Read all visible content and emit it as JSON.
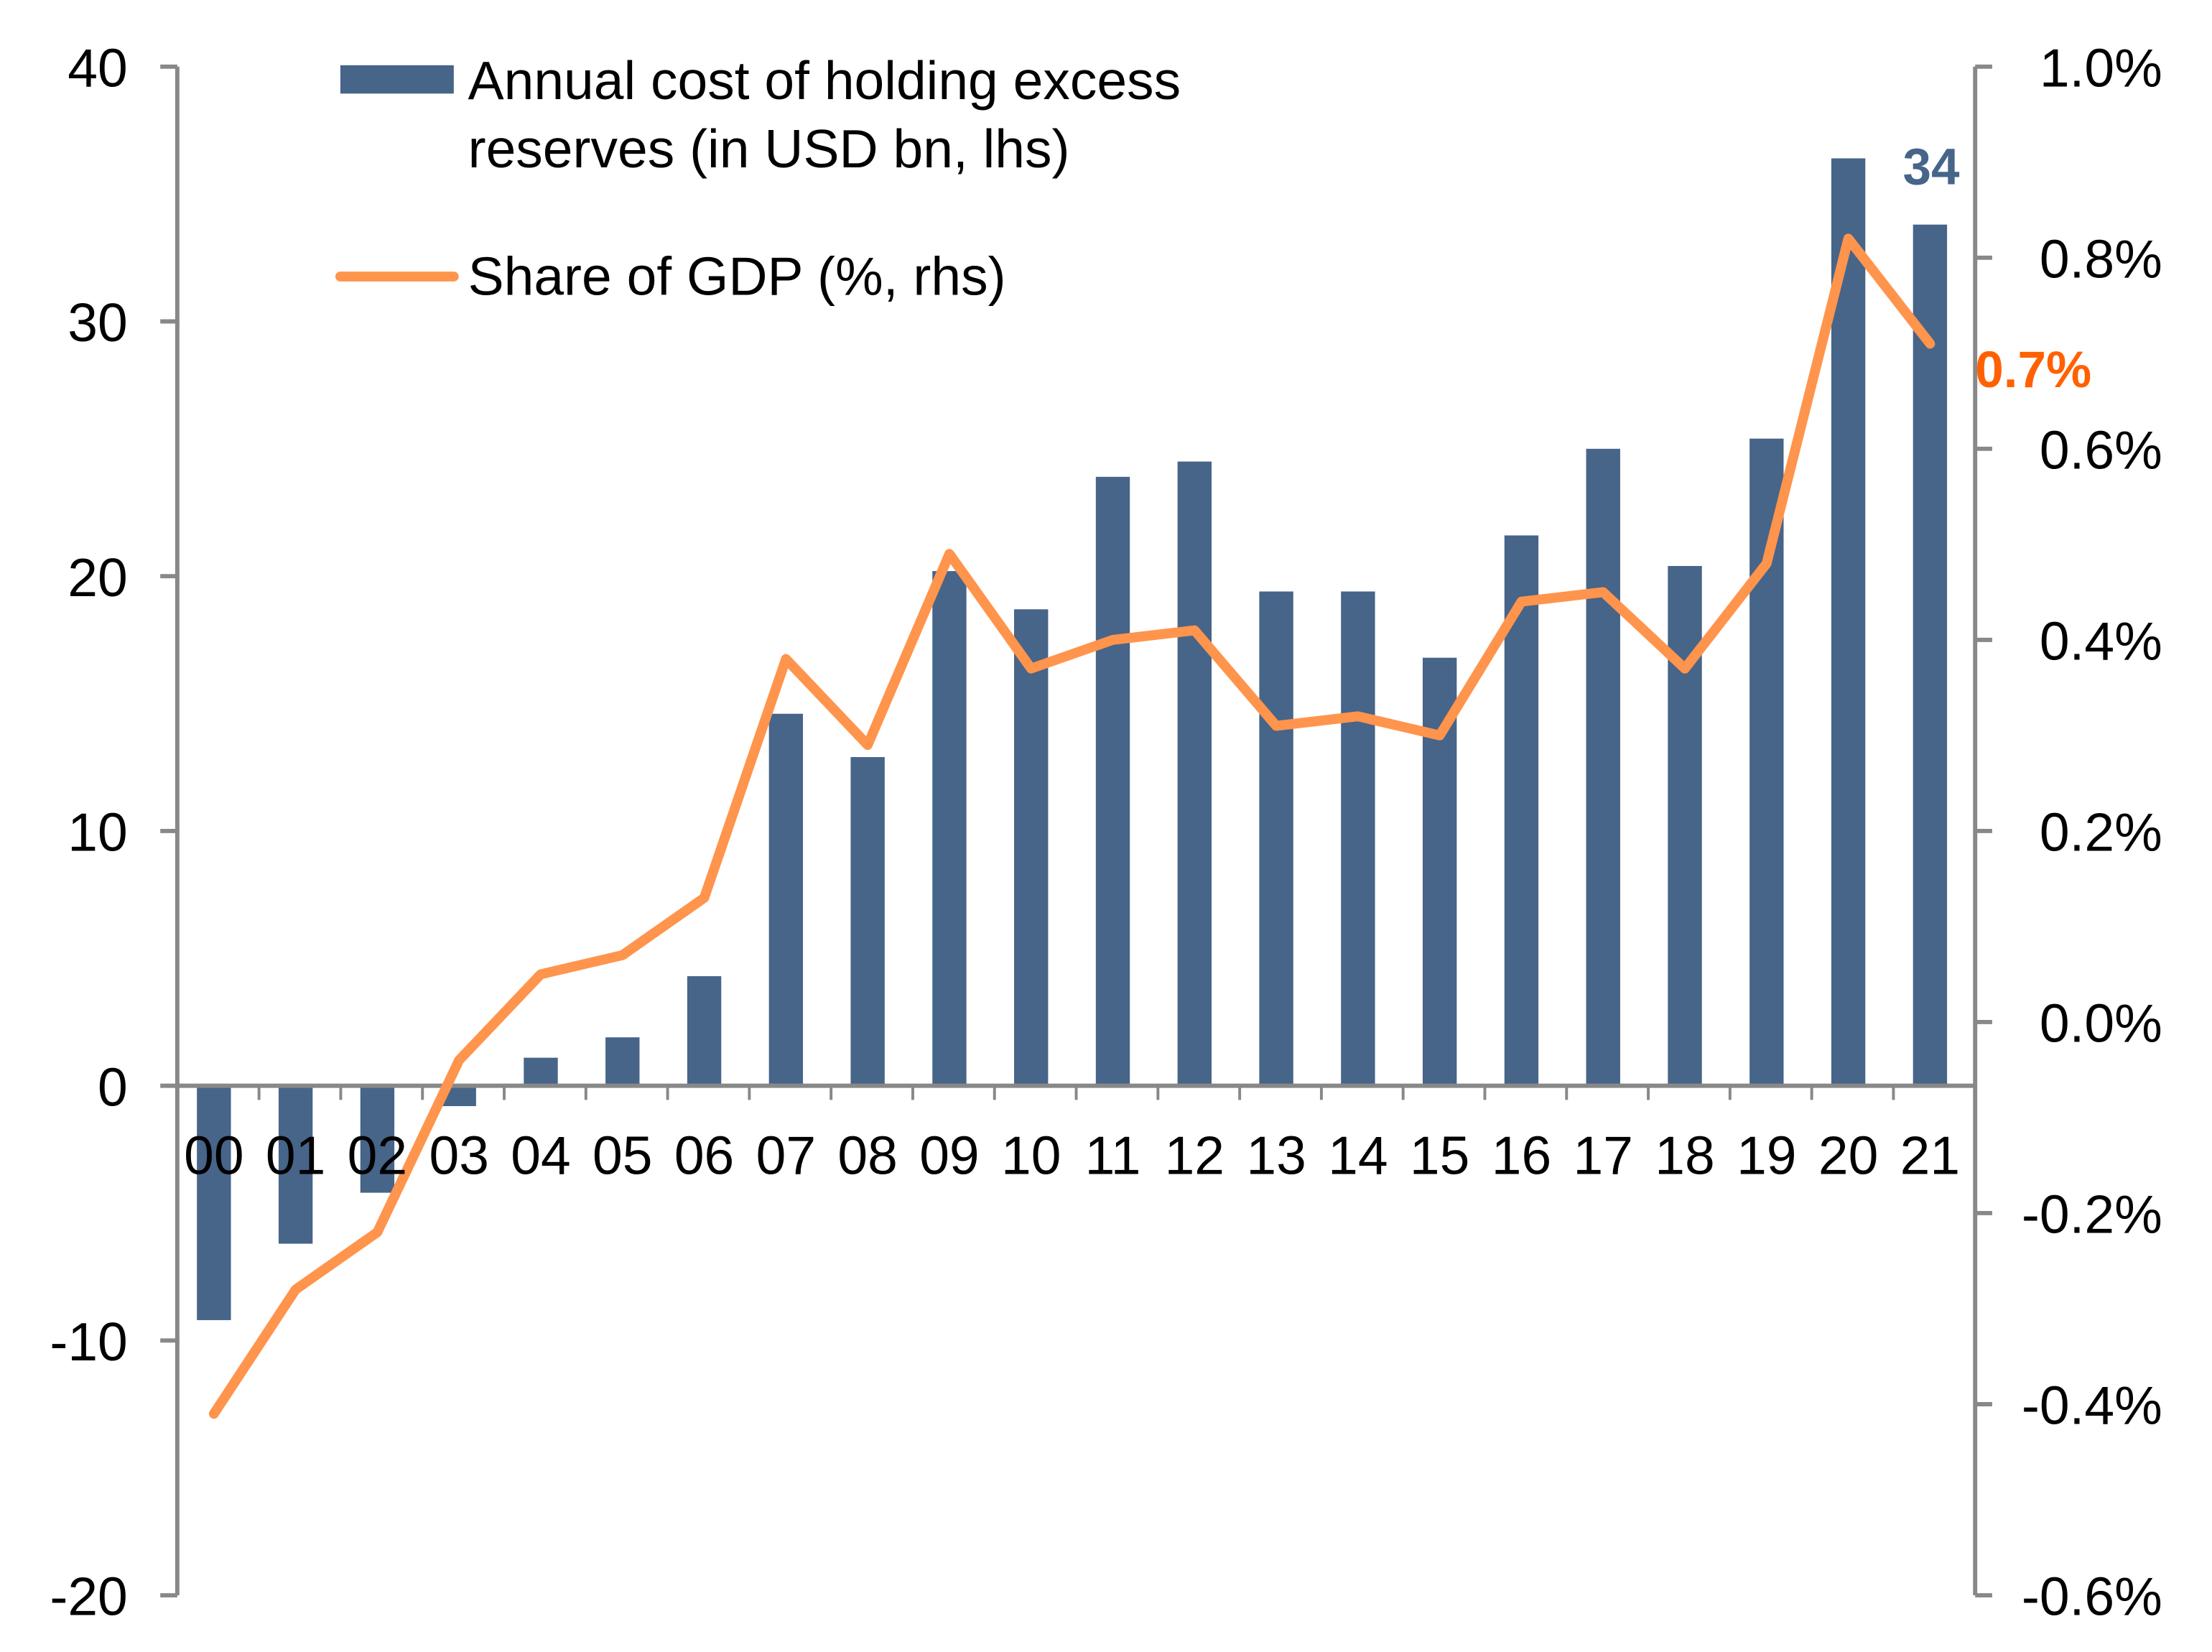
{
  "chart_data": {
    "type": "bar+line",
    "categories": [
      "00",
      "01",
      "02",
      "03",
      "04",
      "05",
      "06",
      "07",
      "08",
      "09",
      "10",
      "11",
      "12",
      "13",
      "14",
      "15",
      "16",
      "17",
      "18",
      "19",
      "20",
      "21"
    ],
    "series": [
      {
        "name": "Annual cost of holding excess reserves (in USD bn, lhs)",
        "type": "bar",
        "axis": "left",
        "color": "#476489",
        "values": [
          -9.2,
          -6.2,
          -4.2,
          -0.8,
          1.1,
          1.9,
          4.3,
          14.6,
          12.9,
          20.2,
          18.7,
          23.9,
          24.5,
          19.4,
          19.4,
          16.8,
          21.6,
          25.0,
          20.4,
          25.4,
          36.4,
          33.8
        ]
      },
      {
        "name": "Share of GDP (%, rhs)",
        "type": "line",
        "axis": "right",
        "color": "#FF944D",
        "values": [
          -0.41,
          -0.28,
          -0.22,
          -0.04,
          0.05,
          0.07,
          0.13,
          0.38,
          0.29,
          0.49,
          0.37,
          0.4,
          0.41,
          0.31,
          0.32,
          0.3,
          0.44,
          0.45,
          0.37,
          0.48,
          0.82,
          0.71
        ]
      }
    ],
    "left_axis": {
      "ylim": [
        -20,
        40
      ],
      "ticks": [
        "-20",
        "-10",
        "0",
        "10",
        "20",
        "30",
        "40"
      ]
    },
    "right_axis": {
      "ylim": [
        -0.6,
        1.0
      ],
      "ticks": [
        "-0.6%",
        "-0.4%",
        "-0.2%",
        "0.0%",
        "0.2%",
        "0.4%",
        "0.6%",
        "0.8%",
        "1.0%"
      ]
    },
    "annotations": {
      "bar_last": "34",
      "line_last": "0.7%",
      "bar_label_color": "#476489",
      "line_label_color": "#FF6100"
    },
    "legend": {
      "placement": "top-left",
      "entries": [
        "Annual cost of holding excess",
        "reserves (in USD bn, lhs)",
        "Share of GDP (%, rhs)"
      ]
    },
    "grid": false
  }
}
